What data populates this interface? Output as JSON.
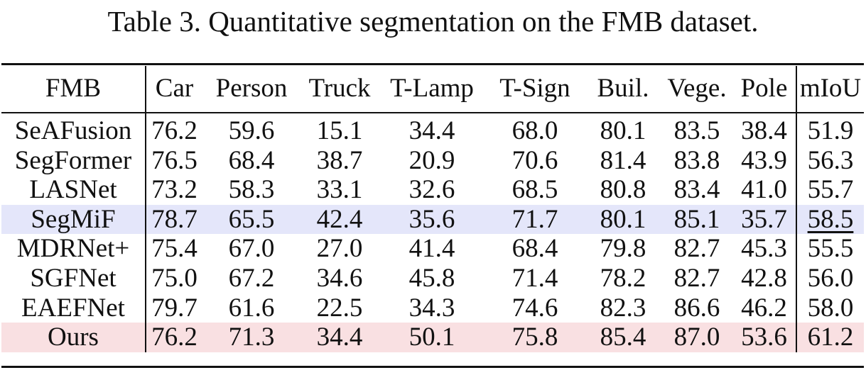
{
  "caption": "Table 3. Quantitative segmentation on the FMB dataset.",
  "columns": [
    "FMB",
    "Car",
    "Person",
    "Truck",
    "T-Lamp",
    "T-Sign",
    "Buil.",
    "Vege.",
    "Pole",
    "mIoU"
  ],
  "rows": [
    {
      "name": "SeAFusion",
      "values": [
        "76.2",
        "59.6",
        "15.1",
        "34.4",
        "68.0",
        "80.1",
        "83.5",
        "38.4",
        "51.9"
      ]
    },
    {
      "name": "SegFormer",
      "values": [
        "76.5",
        "68.4",
        "38.7",
        "20.9",
        "70.6",
        "81.4",
        "83.8",
        "43.9",
        "56.3"
      ]
    },
    {
      "name": "LASNet",
      "values": [
        "73.2",
        "58.3",
        "33.1",
        "32.6",
        "68.5",
        "80.8",
        "83.4",
        "41.0",
        "55.7"
      ]
    },
    {
      "name": "SegMiF",
      "values": [
        "78.7",
        "65.5",
        "42.4",
        "35.6",
        "71.7",
        "80.1",
        "85.1",
        "35.7",
        "58.5"
      ]
    },
    {
      "name": "MDRNet+",
      "values": [
        "75.4",
        "67.0",
        "27.0",
        "41.4",
        "68.4",
        "79.8",
        "82.7",
        "45.3",
        "55.5"
      ]
    },
    {
      "name": "SGFNet",
      "values": [
        "75.0",
        "67.2",
        "34.6",
        "45.8",
        "71.4",
        "78.2",
        "82.7",
        "42.8",
        "56.0"
      ]
    },
    {
      "name": "EAEFNet",
      "values": [
        "79.7",
        "61.6",
        "22.5",
        "34.3",
        "74.6",
        "82.3",
        "86.6",
        "46.2",
        "58.0"
      ]
    },
    {
      "name": "Ours",
      "values": [
        "76.2",
        "71.3",
        "34.4",
        "50.1",
        "75.8",
        "85.4",
        "87.0",
        "53.6",
        "61.2"
      ]
    }
  ],
  "highlight_colors": {
    "second_best_row": "#e4e6fa",
    "ours_row": "#f9e0e2"
  }
}
